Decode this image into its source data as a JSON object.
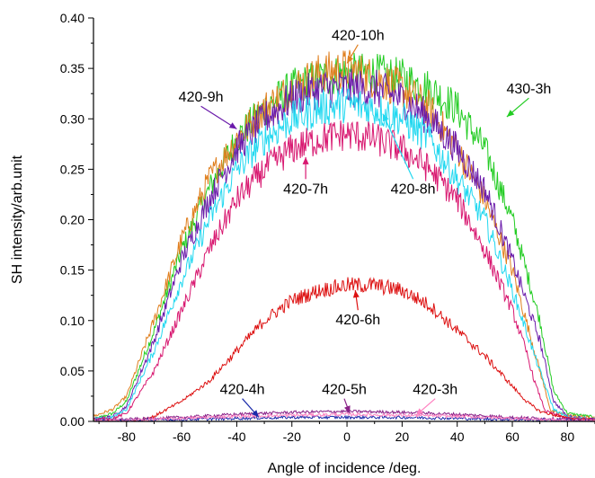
{
  "chart_data": {
    "type": "line",
    "title": "",
    "xlabel": "Angle of incidence /deg.",
    "ylabel": "SH intensity/arb.unit",
    "xlim": [
      -92,
      90
    ],
    "ylim": [
      0.0,
      0.4
    ],
    "x_ticks": [
      "-80",
      "-60",
      "-40",
      "-20",
      "0",
      "20",
      "40",
      "60",
      "80"
    ],
    "x_tick_values": [
      -80,
      -60,
      -40,
      -20,
      0,
      20,
      40,
      60,
      80
    ],
    "y_ticks": [
      "0.00",
      "0.05",
      "0.10",
      "0.15",
      "0.20",
      "0.25",
      "0.30",
      "0.35",
      "0.40"
    ],
    "y_tick_values": [
      0.0,
      0.05,
      0.1,
      0.15,
      0.2,
      0.25,
      0.3,
      0.35,
      0.4
    ],
    "grid": false,
    "legend": "none",
    "series": [
      {
        "name": "430-3h",
        "color": "#22cc22",
        "x": [
          -92,
          -85,
          -80,
          -70,
          -60,
          -50,
          -40,
          -30,
          -20,
          -10,
          0,
          10,
          20,
          30,
          40,
          50,
          60,
          65,
          70,
          75,
          80,
          90
        ],
        "values": [
          0.002,
          0.008,
          0.02,
          0.09,
          0.17,
          0.23,
          0.28,
          0.31,
          0.33,
          0.34,
          0.345,
          0.345,
          0.34,
          0.33,
          0.31,
          0.27,
          0.2,
          0.15,
          0.1,
          0.03,
          0.008,
          0.004
        ]
      },
      {
        "name": "420-10h",
        "color": "#e08020",
        "x": [
          -92,
          -85,
          -80,
          -70,
          -60,
          -50,
          -40,
          -30,
          -20,
          -10,
          0,
          10,
          20,
          30,
          40,
          50,
          60,
          65,
          70,
          74,
          80,
          90
        ],
        "values": [
          0.005,
          0.012,
          0.025,
          0.1,
          0.18,
          0.24,
          0.28,
          0.31,
          0.33,
          0.345,
          0.35,
          0.34,
          0.33,
          0.31,
          0.27,
          0.22,
          0.15,
          0.1,
          0.05,
          0.01,
          0.006,
          0.003
        ]
      },
      {
        "name": "420-9h",
        "color": "#6a1aaa",
        "x": [
          -92,
          -85,
          -80,
          -70,
          -60,
          -50,
          -40,
          -30,
          -20,
          -10,
          0,
          10,
          20,
          30,
          40,
          50,
          60,
          65,
          70,
          75,
          80,
          90
        ],
        "values": [
          0.002,
          0.005,
          0.015,
          0.08,
          0.16,
          0.22,
          0.27,
          0.3,
          0.32,
          0.33,
          0.33,
          0.33,
          0.32,
          0.3,
          0.27,
          0.23,
          0.16,
          0.12,
          0.08,
          0.02,
          0.005,
          0.002
        ]
      },
      {
        "name": "420-8h",
        "color": "#22d8f0",
        "x": [
          -92,
          -85,
          -80,
          -70,
          -60,
          -50,
          -40,
          -30,
          -20,
          -10,
          0,
          10,
          20,
          30,
          40,
          50,
          60,
          65,
          70,
          75,
          80,
          90
        ],
        "values": [
          0.002,
          0.004,
          0.012,
          0.07,
          0.14,
          0.2,
          0.25,
          0.28,
          0.3,
          0.31,
          0.315,
          0.31,
          0.3,
          0.28,
          0.24,
          0.2,
          0.13,
          0.09,
          0.05,
          0.012,
          0.004,
          0.002
        ]
      },
      {
        "name": "420-7h",
        "color": "#d81870",
        "x": [
          -92,
          -85,
          -80,
          -70,
          -60,
          -50,
          -40,
          -30,
          -20,
          -10,
          0,
          10,
          20,
          30,
          40,
          50,
          60,
          65,
          68,
          72,
          80,
          90
        ],
        "values": [
          0.002,
          0.003,
          0.008,
          0.05,
          0.11,
          0.17,
          0.22,
          0.25,
          0.27,
          0.28,
          0.285,
          0.28,
          0.27,
          0.25,
          0.22,
          0.17,
          0.11,
          0.07,
          0.04,
          0.01,
          0.003,
          0.002
        ]
      },
      {
        "name": "420-6h",
        "color": "#dd1111",
        "x": [
          -92,
          -80,
          -75,
          -70,
          -60,
          -50,
          -40,
          -30,
          -20,
          -10,
          0,
          10,
          20,
          30,
          40,
          50,
          60,
          65,
          70,
          80,
          90
        ],
        "values": [
          0.0,
          0.0,
          0.001,
          0.005,
          0.02,
          0.04,
          0.07,
          0.1,
          0.12,
          0.13,
          0.135,
          0.135,
          0.13,
          0.115,
          0.09,
          0.065,
          0.035,
          0.02,
          0.01,
          0.003,
          0.001
        ]
      },
      {
        "name": "420-5h",
        "color": "#8a2288",
        "x": [
          -92,
          -80,
          -60,
          -40,
          -20,
          0,
          20,
          40,
          60,
          80,
          90
        ],
        "values": [
          0.001,
          0.002,
          0.004,
          0.007,
          0.009,
          0.01,
          0.009,
          0.007,
          0.004,
          0.002,
          0.001
        ]
      },
      {
        "name": "420-4h",
        "color": "#1a2aaa",
        "x": [
          -92,
          -80,
          -60,
          -40,
          -20,
          0,
          20,
          40,
          60,
          80,
          90
        ],
        "values": [
          0.0,
          0.001,
          0.002,
          0.003,
          0.004,
          0.004,
          0.004,
          0.003,
          0.002,
          0.001,
          0.0
        ]
      },
      {
        "name": "420-3h",
        "color": "#ff80c0",
        "x": [
          -92,
          -80,
          -60,
          -40,
          -20,
          0,
          20,
          40,
          60,
          80,
          90
        ],
        "values": [
          0.0,
          0.001,
          0.003,
          0.005,
          0.006,
          0.007,
          0.006,
          0.005,
          0.003,
          0.001,
          0.0
        ]
      }
    ],
    "annotations": [
      {
        "text": "420-10h",
        "tx": 4,
        "ty": 0.378,
        "ax": 0,
        "ay": 0.355,
        "color": "#e08020"
      },
      {
        "text": "430-3h",
        "tx": 66,
        "ty": 0.325,
        "ax": 58,
        "ay": 0.302,
        "color": "#22cc22"
      },
      {
        "text": "420-9h",
        "tx": -53,
        "ty": 0.317,
        "ax": -40,
        "ay": 0.29,
        "color": "#6a1aaa"
      },
      {
        "text": "420-7h",
        "tx": -15,
        "ty": 0.226,
        "ax": -15,
        "ay": 0.262,
        "color": "#d81870"
      },
      {
        "text": "420-8h",
        "tx": 24,
        "ty": 0.226,
        "ax": 13,
        "ay": 0.305,
        "color": "#22d8f0"
      },
      {
        "text": "420-6h",
        "tx": 4,
        "ty": 0.096,
        "ax": 3,
        "ay": 0.13,
        "color": "#dd1111"
      },
      {
        "text": "420-4h",
        "tx": -38,
        "ty": 0.027,
        "ax": -32,
        "ay": 0.004,
        "color": "#1a2aaa"
      },
      {
        "text": "420-5h",
        "tx": -1,
        "ty": 0.027,
        "ax": 1,
        "ay": 0.008,
        "color": "#8a2288"
      },
      {
        "text": "420-3h",
        "tx": 32,
        "ty": 0.027,
        "ax": 25,
        "ay": 0.006,
        "color": "#ff80c0"
      }
    ]
  }
}
